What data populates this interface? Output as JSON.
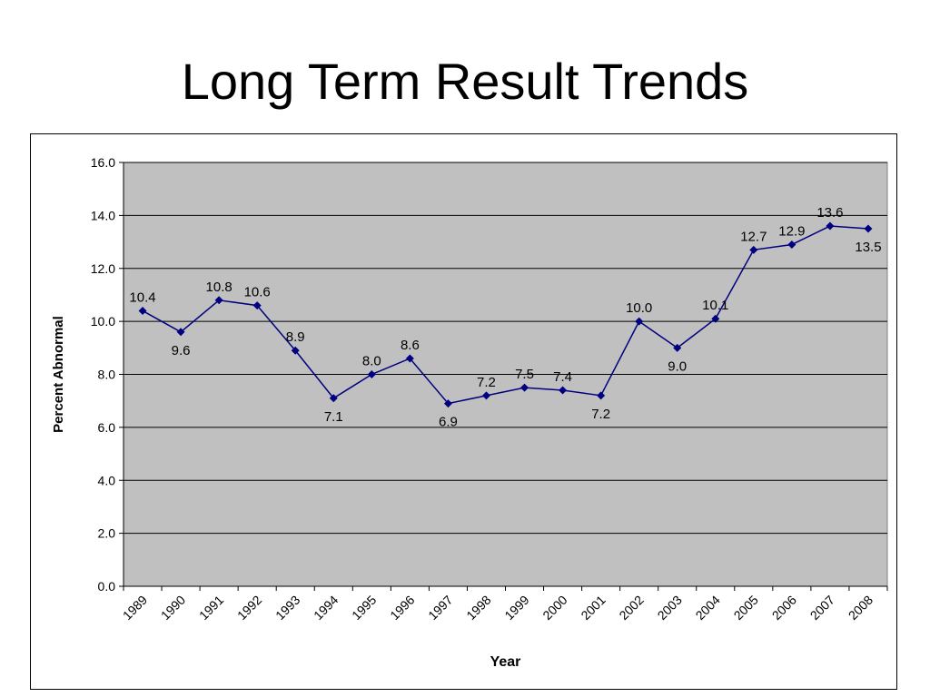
{
  "title": "Long Term Result Trends",
  "colors": {
    "plot_bg": "#c0c0c0",
    "line": "#000080",
    "grid": "#000000"
  },
  "chart_data": {
    "type": "line",
    "title": "",
    "xlabel": "Year",
    "ylabel": "Percent Abnormal",
    "categories": [
      "1989",
      "1990",
      "1991",
      "1992",
      "1993",
      "1994",
      "1995",
      "1996",
      "1997",
      "1998",
      "1999",
      "2000",
      "2001",
      "2002",
      "2003",
      "2004",
      "2005",
      "2006",
      "2007",
      "2008"
    ],
    "series": [
      {
        "values": [
          10.4,
          9.6,
          10.8,
          10.6,
          8.9,
          7.1,
          8.0,
          8.6,
          6.9,
          7.2,
          7.5,
          7.4,
          7.2,
          10.0,
          9.0,
          10.1,
          12.7,
          12.9,
          13.6,
          13.5
        ],
        "labels": [
          "10.4",
          "9.6",
          "10.8",
          "10.6",
          "8.9",
          "7.1",
          "8.0",
          "8.6",
          "6.9",
          "7.2",
          "7.5",
          "7.4",
          "7.2",
          "10.0",
          "9.0",
          "10.1",
          "12.7",
          "12.9",
          "13.6",
          "13.5"
        ]
      }
    ],
    "ylim": [
      0,
      16
    ],
    "yticks": [
      "0.0",
      "2.0",
      "4.0",
      "6.0",
      "8.0",
      "10.0",
      "12.0",
      "14.0",
      "16.0"
    ],
    "grid": true,
    "marker": "diamond"
  }
}
